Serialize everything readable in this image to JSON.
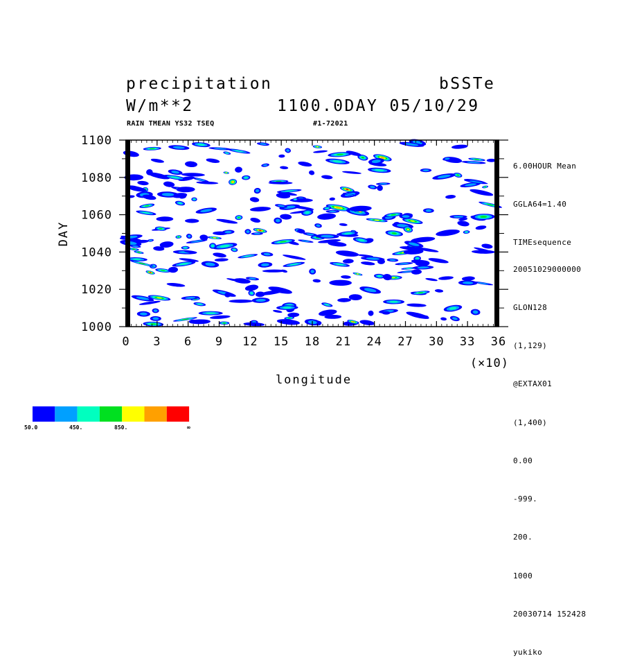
{
  "header": {
    "title_left": "precipitation",
    "title_right": "bSSTe",
    "units": "W/m**2",
    "time_label": "1100.0DAY 05/10/29",
    "sub_left": "RAIN TMEAN YS32 TSEQ",
    "sub_right": "#1-72021"
  },
  "side_info": {
    "top": [
      "6.00HOUR Mean",
      "GGLA64=1.40",
      "TIMEsequence"
    ],
    "bottom": [
      "20051029000000",
      "GLON128",
      "(1,129)",
      "@EXTAX01",
      "(1,400)",
      "0.00",
      "-999.",
      "200.",
      "1000",
      "20030714 152428",
      "yukiko"
    ]
  },
  "chart_data": {
    "type": "heatmap",
    "xlabel": "longitude",
    "ylabel": "DAY",
    "x_scale_note": "(×10)",
    "xlim": [
      0,
      36
    ],
    "ylim": [
      1000,
      1100
    ],
    "x_ticks": [
      "0",
      "3",
      "6",
      "9",
      "12",
      "15",
      "18",
      "21",
      "24",
      "27",
      "30",
      "33",
      "36"
    ],
    "y_ticks": [
      "1000",
      "1020",
      "1040",
      "1060",
      "1080",
      "1100"
    ],
    "colorbar": {
      "colors": [
        "#0000ff",
        "#00a0ff",
        "#00ffbf",
        "#00e020",
        "#ffff00",
        "#ffa000",
        "#ff0000"
      ],
      "labels": [
        "50.0",
        "450.",
        "850.",
        "∞"
      ]
    }
  }
}
